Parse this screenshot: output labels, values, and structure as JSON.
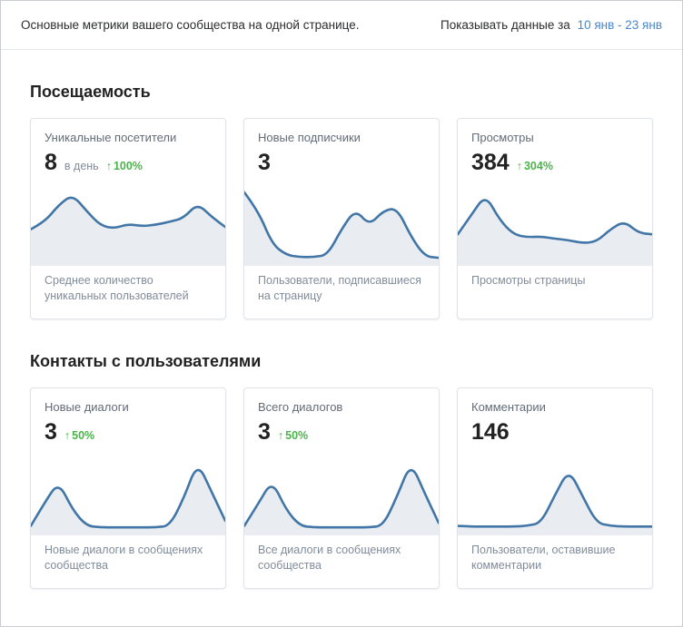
{
  "header": {
    "description": "Основные метрики вашего сообщества на одной странице.",
    "period_label": "Показывать данные за",
    "period_value": "10 янв - 23 янв"
  },
  "icons": {
    "arrow_up": "↑"
  },
  "colors": {
    "link_blue": "#4986cc",
    "delta_green": "#4bb34b",
    "chart_line": "#4176a7",
    "chart_fill": "#e9edf2",
    "border": "#e1e4e8"
  },
  "chart_data": {
    "type": "area",
    "note": "six sparklines, values stored per card in sections[].cards[].spark (normalized 0-100)"
  },
  "sections": [
    {
      "title": "Посещаемость",
      "cards": [
        {
          "title": "Уникальные посетители",
          "value": "8",
          "value_suffix": "в день",
          "delta": "100%",
          "caption": "Среднее количество уникальных пользователей",
          "spark": [
            45,
            55,
            78,
            92,
            70,
            50,
            46,
            52,
            49,
            51,
            55,
            60,
            80,
            62,
            48
          ]
        },
        {
          "title": "Новые подписчики",
          "value": "3",
          "caption": "Пользователи, подписавшиеся на страницу",
          "spark": [
            95,
            70,
            25,
            10,
            7,
            7,
            10,
            45,
            72,
            50,
            70,
            74,
            35,
            8,
            6
          ]
        },
        {
          "title": "Просмотры",
          "value": "384",
          "delta": "304%",
          "caption": "Просмотры страницы",
          "spark": [
            38,
            65,
            92,
            58,
            38,
            34,
            35,
            32,
            30,
            26,
            28,
            45,
            56,
            40,
            38
          ]
        }
      ]
    },
    {
      "title": "Контакты с пользователями",
      "cards": [
        {
          "title": "Новые диалоги",
          "value": "3",
          "delta": "50%",
          "caption": "Новые диалоги в сообщениях сообщества",
          "spark": [
            8,
            40,
            68,
            30,
            8,
            6,
            6,
            6,
            6,
            6,
            8,
            45,
            95,
            55,
            15
          ]
        },
        {
          "title": "Всего диалогов",
          "value": "3",
          "delta": "50%",
          "caption": "Все диалоги в сообщениях сообщества",
          "spark": [
            8,
            38,
            70,
            30,
            8,
            6,
            6,
            6,
            6,
            6,
            8,
            48,
            95,
            52,
            12
          ]
        },
        {
          "title": "Комментарии",
          "value": "146",
          "caption": "Пользователи, оставившие комментарии",
          "spark": [
            8,
            7,
            7,
            7,
            7,
            8,
            12,
            50,
            85,
            48,
            12,
            8,
            7,
            7,
            7
          ]
        }
      ]
    }
  ]
}
